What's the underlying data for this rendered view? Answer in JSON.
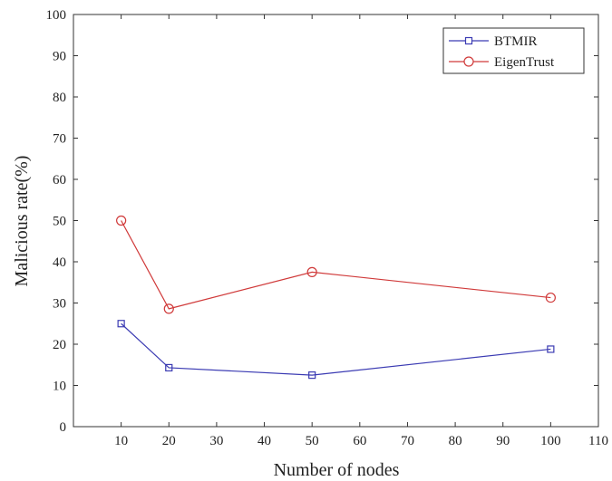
{
  "chart_data": {
    "type": "line",
    "xlabel": "Number of nodes",
    "ylabel": "Malicious rate(%)",
    "xlim": [
      0,
      110
    ],
    "ylim": [
      0,
      100
    ],
    "xticks": [
      10,
      20,
      30,
      40,
      50,
      60,
      70,
      80,
      90,
      100,
      110
    ],
    "yticks": [
      0,
      10,
      20,
      30,
      40,
      50,
      60,
      70,
      80,
      90,
      100
    ],
    "grid": false,
    "legend_position": "top-right",
    "x": [
      10,
      20,
      50,
      100
    ],
    "series": [
      {
        "name": "BTMIR",
        "values": [
          25.0,
          14.3,
          12.5,
          18.8
        ],
        "color": "#3b3bb3",
        "marker": "square"
      },
      {
        "name": "EigenTrust",
        "values": [
          50.0,
          28.6,
          37.5,
          31.3
        ],
        "color": "#d03a3a",
        "marker": "circle"
      }
    ]
  }
}
